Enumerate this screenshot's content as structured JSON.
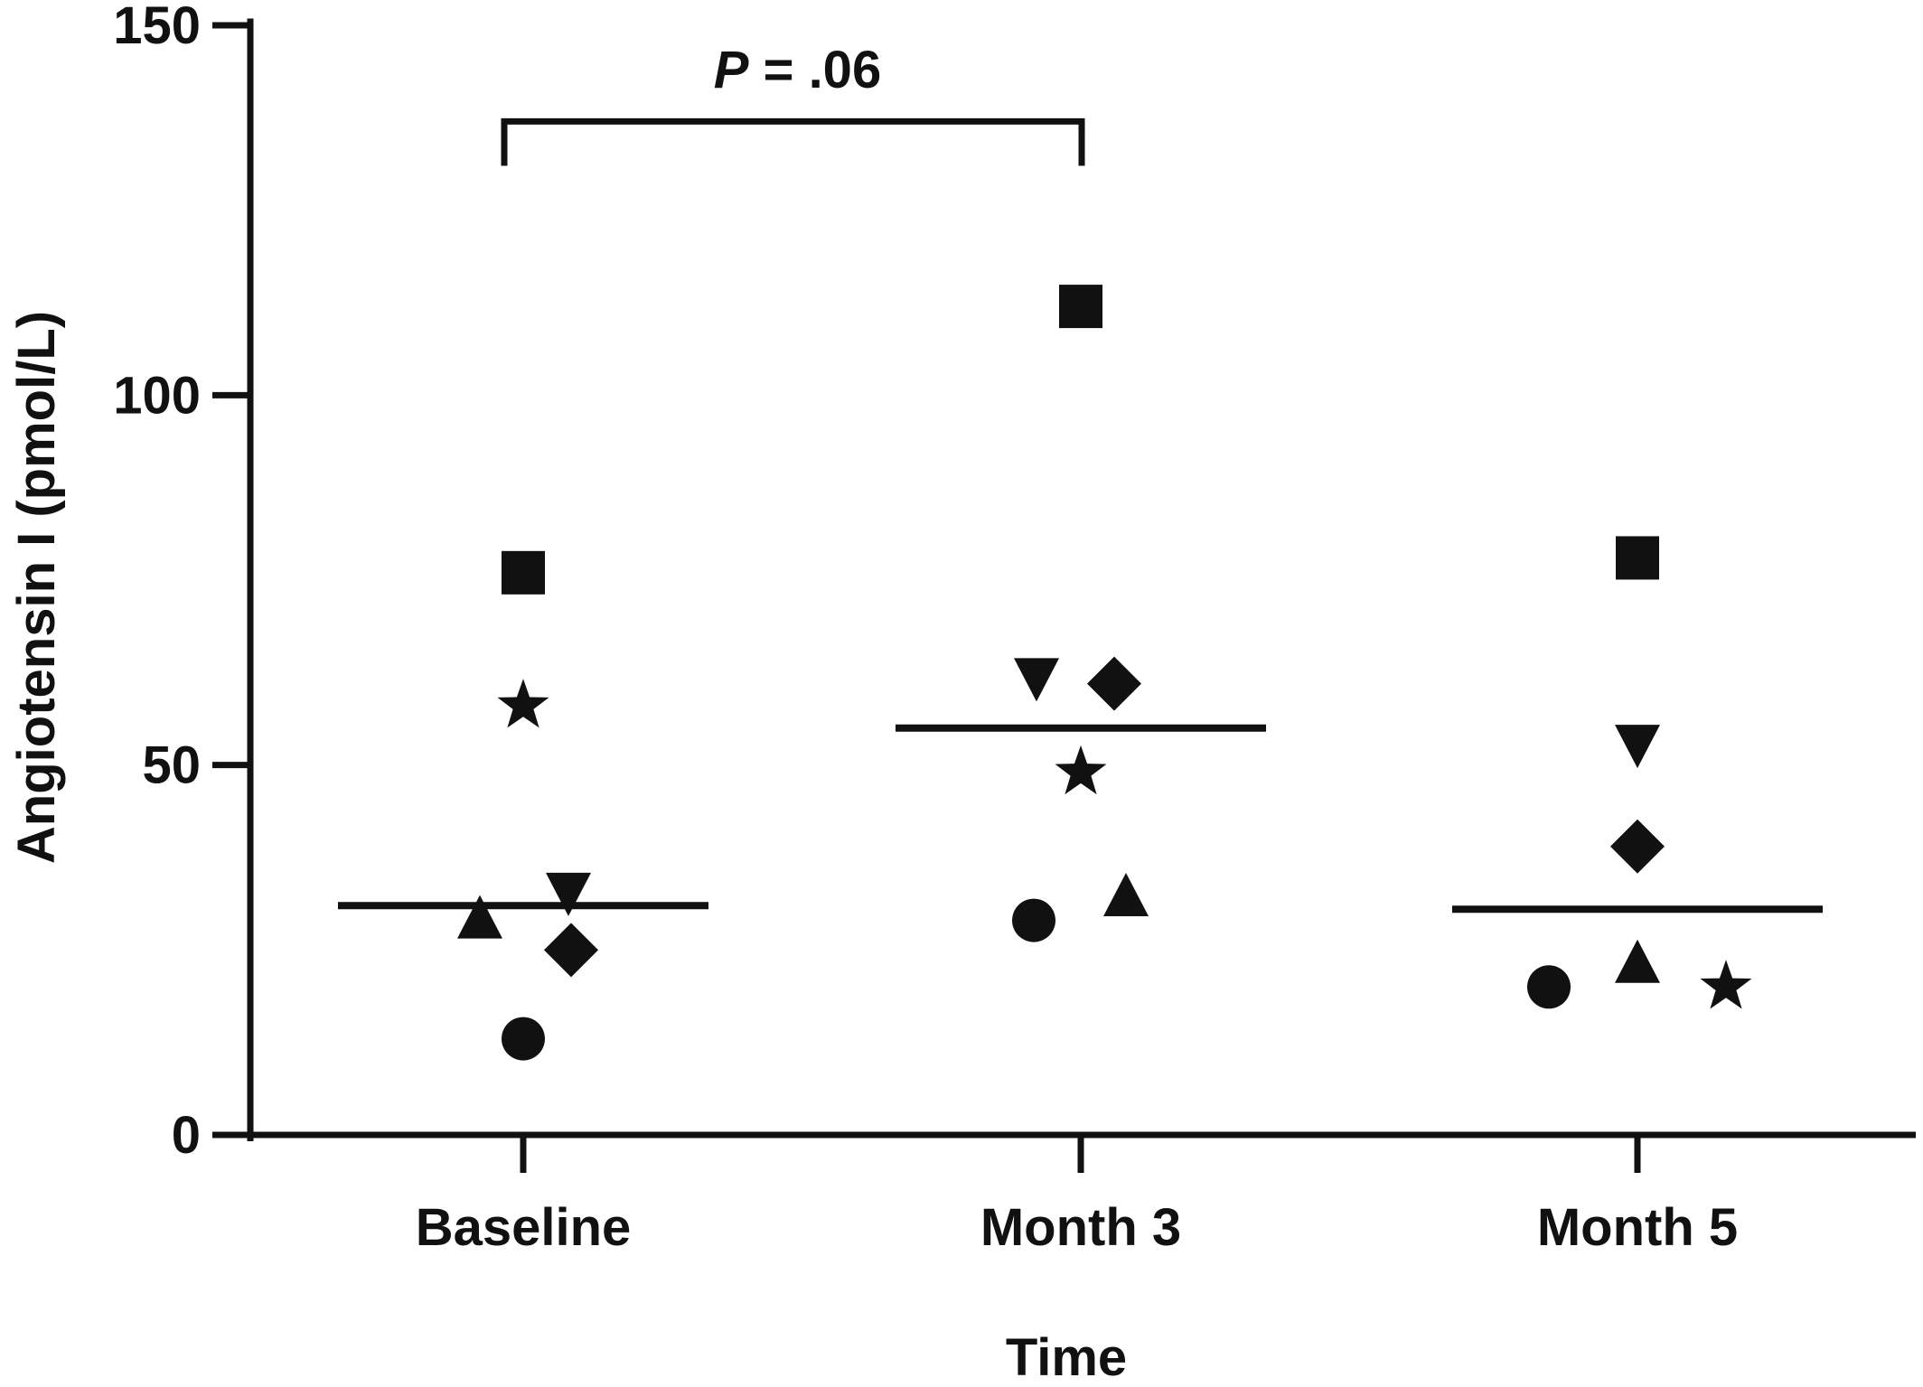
{
  "chart_data": {
    "type": "scatter",
    "title": "",
    "xlabel": "Time",
    "ylabel": "Angiotensin I (pmol/L)",
    "categories": [
      "Baseline",
      "Month 3",
      "Month 5"
    ],
    "ylim": [
      0,
      150
    ],
    "yticks": [
      0,
      50,
      100,
      150
    ],
    "ytick_labels": [
      "0",
      "50",
      "100",
      "150"
    ],
    "grid": false,
    "legend": "none",
    "colors": {
      "marker": "#111111",
      "axis": "#111111"
    },
    "series": [
      {
        "marker": "circle",
        "values": [
          13,
          29,
          20
        ]
      },
      {
        "marker": "square",
        "values": [
          76,
          112,
          78
        ]
      },
      {
        "marker": "triangle-up",
        "values": [
          29,
          32,
          23
        ]
      },
      {
        "marker": "triangle-down",
        "values": [
          33,
          62,
          53
        ]
      },
      {
        "marker": "diamond",
        "values": [
          25,
          61,
          39
        ]
      },
      {
        "marker": "star",
        "values": [
          58,
          49,
          20
        ]
      }
    ],
    "medians": [
      31,
      55,
      30.5
    ],
    "annotation": {
      "text_italic": "P",
      "text_rest": " = .06",
      "from_category": "Baseline",
      "to_category": "Month 3",
      "bracket_bottom_y": 131,
      "bracket_top_y": 137
    }
  }
}
